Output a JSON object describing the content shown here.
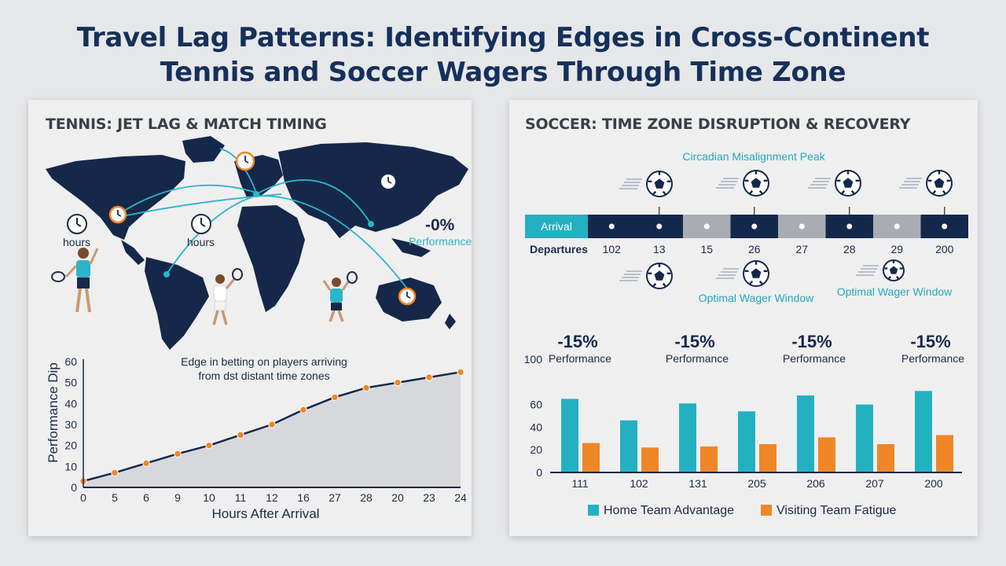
{
  "page": {
    "title_line1": "Travel Lag Patterns: Identifying Edges in Cross-Continent",
    "title_line2": "Tennis and Soccer Wagers Through Time Zone"
  },
  "tennis": {
    "heading": "TENNIS: JET LAG & MATCH TIMING",
    "map_labels": {
      "hours_left": "hours",
      "hours_mid": "hours",
      "perf_value": "-0%",
      "perf_label": "Performance"
    }
  },
  "soccer": {
    "heading": "SOCCER: TIME ZONE DISRUPTION & RECOVERY",
    "peak_label": "Circadian Misalignment Peak",
    "arrival_label": "Arrival",
    "departures_label": "Departures",
    "departure_values": [
      "102",
      "13",
      "15",
      "26",
      "27",
      "28",
      "29",
      "200"
    ],
    "window_label_1": "Optimal Wager Window",
    "window_label_2": "Optimal Wager Window",
    "colors": {
      "navy": "#14284b",
      "teal": "#23b1c2",
      "orange": "#ef8628",
      "gray": "#a9adb3"
    }
  },
  "chart_data": [
    {
      "type": "area",
      "title": "",
      "xlabel": "Hours After Arrival",
      "ylabel": "Performance Dip",
      "categories": [
        "0",
        "5",
        "6",
        "9",
        "10",
        "11",
        "12",
        "16",
        "27",
        "28",
        "20",
        "23",
        "24"
      ],
      "values": [
        3,
        7,
        11.5,
        16,
        20,
        25,
        30,
        37,
        43,
        47.5,
        50,
        52.5,
        55
      ],
      "ylim": [
        0,
        60
      ],
      "yticks": [
        0,
        10,
        20,
        30,
        40,
        50,
        60
      ],
      "annotation": {
        "line1": "Edge in betting on players arriving",
        "line2": "from dst distant time zones"
      },
      "grid": false
    },
    {
      "type": "bar",
      "title": "",
      "categories": [
        "111",
        "102",
        "131",
        "205",
        "206",
        "207",
        "200"
      ],
      "series": [
        {
          "name": "Home Team Advantage",
          "values": [
            65,
            46,
            61,
            54,
            68,
            60,
            72
          ]
        },
        {
          "name": "Visiting Team Fatigue",
          "values": [
            26,
            22,
            23,
            25,
            31,
            25,
            33
          ]
        }
      ],
      "ylim": [
        0,
        100
      ],
      "yticks": [
        0,
        20,
        40,
        60,
        100
      ],
      "annotations": [
        {
          "value": "-15%",
          "label": "Performance"
        },
        {
          "value": "-15%",
          "label": "Performance"
        },
        {
          "value": "-15%",
          "label": "Performance"
        },
        {
          "value": "-15%",
          "label": "Performance"
        }
      ],
      "legend_position": "bottom",
      "grid": false
    }
  ]
}
